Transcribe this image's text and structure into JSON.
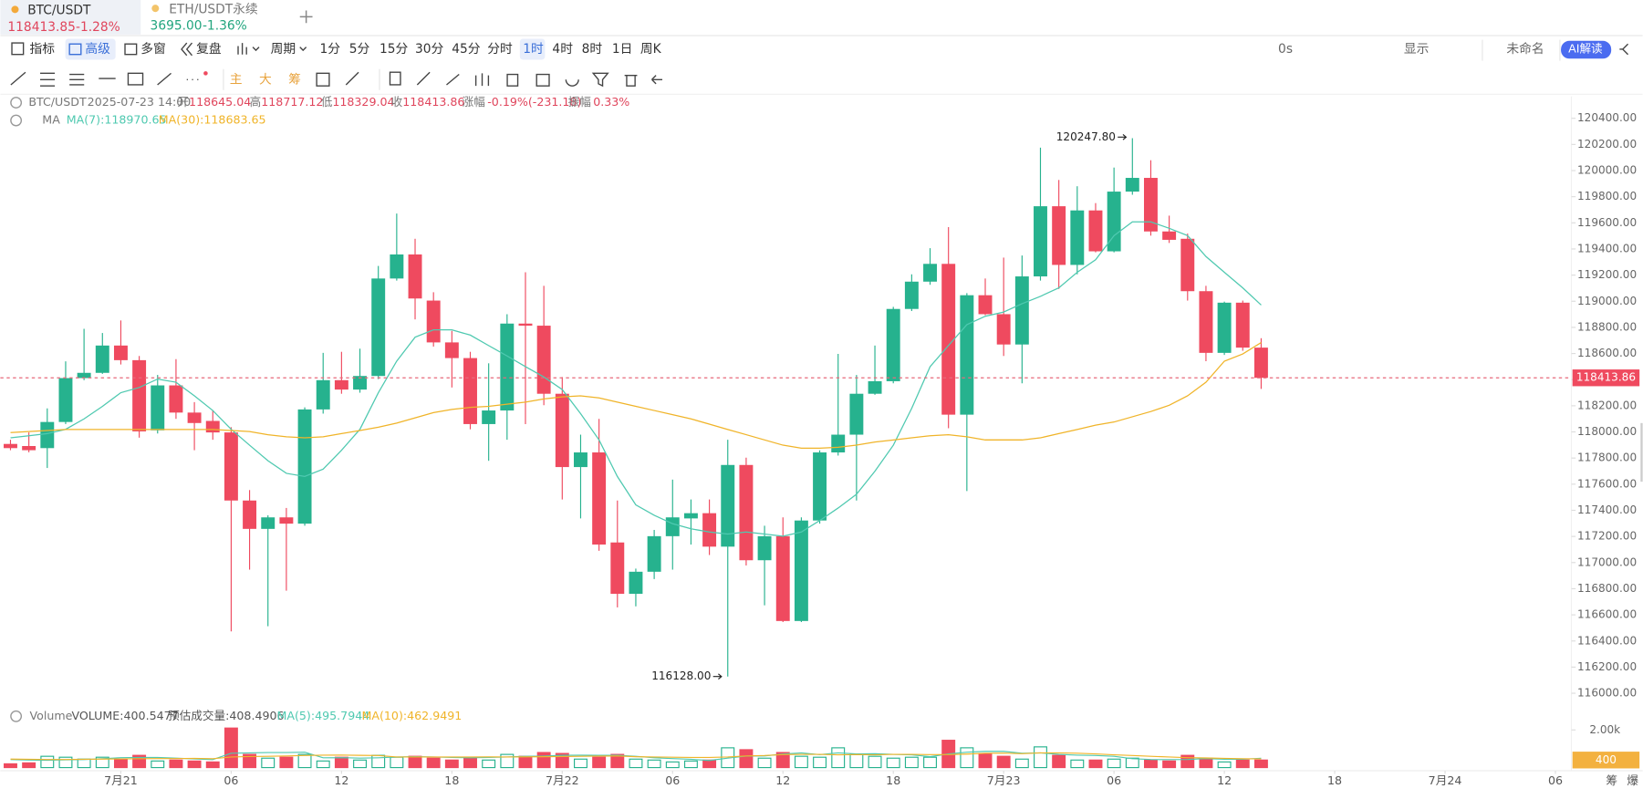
{
  "tabs": [
    {
      "symbol": "BTC/USDT",
      "price": "118413.85",
      "change": "-1.28%"
    },
    {
      "symbol": "ETH/USDT永续",
      "price": "3695.00",
      "change": "-1.36%"
    }
  ],
  "toolbar": {
    "left": [
      "指标",
      "高级",
      "多窗",
      "复盘",
      "周期"
    ],
    "intervals": [
      "1分",
      "5分",
      "15分",
      "30分",
      "45分",
      "分时",
      "1时",
      "4时",
      "8时",
      "1日",
      "周K"
    ],
    "right": [
      "0s",
      "显示",
      "未命名",
      "AI解读"
    ],
    "drawing": [
      "主",
      "大",
      "筹"
    ],
    "footer": [
      "筹",
      "爆"
    ]
  },
  "chart_data": [
    {
      "type": "candlestick",
      "title": "BTC/USDT",
      "subtitle": "2025-07-23 14:00",
      "info": [
        [
          "开",
          "118645.04"
        ],
        [
          "高",
          "118717.12"
        ],
        [
          "低",
          "118329.04"
        ],
        [
          "收",
          "118413.86"
        ],
        [
          "涨幅",
          "-0.19%(-231.18)"
        ],
        [
          "振幅",
          "0.33%"
        ]
      ],
      "indicator": "MA",
      "x": [
        -6,
        -5,
        -4,
        -3,
        -2,
        -1,
        0,
        1,
        2,
        3,
        4,
        5,
        6,
        7,
        8,
        9,
        10,
        11,
        12,
        13,
        14,
        15,
        16,
        17,
        18,
        19,
        20,
        21,
        22,
        23,
        24,
        25,
        26,
        27,
        28,
        29,
        30,
        31,
        32,
        33,
        34,
        35,
        36,
        37,
        38,
        39,
        40,
        41,
        42,
        43,
        44,
        45,
        46,
        47,
        48,
        49,
        50,
        51,
        52,
        53,
        54,
        55,
        56,
        57,
        58,
        59,
        60,
        61,
        62
      ],
      "open": [
        117908,
        117892,
        117876,
        118076,
        118412,
        118452,
        118661,
        118549,
        118012,
        118356,
        118148,
        118084,
        117996,
        117475,
        117258,
        117346,
        117298,
        118172,
        118396,
        118324,
        118428,
        119174,
        119358,
        119005,
        118685,
        118565,
        118060,
        118164,
        118829,
        118813,
        118292,
        117731,
        117843,
        117154,
        116761,
        116930,
        117202,
        117338,
        117378,
        117122,
        117747,
        117018,
        117202,
        116553,
        117322,
        117843,
        117979,
        118292,
        118388,
        118941,
        119150,
        119286,
        118132,
        119046,
        118901,
        118669,
        119190,
        119727,
        119278,
        119695,
        119382,
        119839,
        119944,
        119534,
        119478,
        119077,
        118605,
        118989,
        118645.04
      ],
      "high": [
        117940,
        117996,
        118180,
        118540,
        118789,
        118757,
        118853,
        118581,
        118436,
        118557,
        118228,
        118164,
        118036,
        117555,
        117362,
        117418,
        118188,
        118605,
        118613,
        118637,
        119270,
        119671,
        119478,
        119069,
        118773,
        118613,
        118525,
        118901,
        119222,
        119118,
        118420,
        117979,
        118100,
        117475,
        116954,
        117250,
        117635,
        117483,
        117483,
        117940,
        117803,
        117282,
        117346,
        117346,
        117859,
        118597,
        118436,
        118661,
        118957,
        119206,
        119406,
        119567,
        119062,
        119174,
        119334,
        119350,
        120175,
        119928,
        119880,
        119751,
        120023,
        120247.8,
        120079,
        119655,
        119518,
        119118,
        118997,
        119005,
        118717.12
      ],
      "low": [
        117860,
        117844,
        117724,
        118060,
        118396,
        118444,
        118516,
        117956,
        117988,
        118100,
        117860,
        117940,
        116473,
        116946,
        116513,
        116785,
        117282,
        118140,
        118292,
        118300,
        118404,
        119158,
        118861,
        118653,
        118340,
        118020,
        117779,
        117940,
        118060,
        118204,
        117483,
        117338,
        117090,
        116657,
        116665,
        116874,
        116946,
        117138,
        117058,
        116128,
        116978,
        116673,
        116545,
        116545,
        117298,
        117819,
        117475,
        118284,
        118372,
        118925,
        119126,
        118028,
        117547,
        118893,
        118581,
        118372,
        119158,
        119094,
        119206,
        119374,
        119374,
        119815,
        119502,
        119446,
        119005,
        118541,
        118589,
        118621,
        118329.04
      ],
      "close": [
        117876,
        117860,
        118076,
        118412,
        118452,
        118661,
        118549,
        118004,
        118356,
        118148,
        118068,
        117996,
        117475,
        117258,
        117346,
        117298,
        118172,
        118396,
        118324,
        118428,
        119174,
        119358,
        119021,
        118685,
        118565,
        118060,
        118164,
        118829,
        118813,
        118292,
        117731,
        117843,
        117138,
        116761,
        116930,
        117202,
        117346,
        117378,
        117122,
        117747,
        117018,
        117202,
        116553,
        117322,
        117843,
        117979,
        118292,
        118388,
        118941,
        119150,
        119286,
        118132,
        119046,
        118901,
        118669,
        119190,
        119727,
        119278,
        119695,
        119382,
        119839,
        119944,
        119534,
        119470,
        119077,
        118605,
        118989,
        118645,
        118413.86
      ],
      "colors": {
        "up": "#26b28e",
        "down": "#ef4a5f"
      },
      "series": [
        {
          "name": "MA(7):118970.65",
          "color": "#4fc9b0",
          "values": [
            117955,
            117971,
            117987,
            118020,
            118100,
            118196,
            118300,
            118340,
            118404,
            118380,
            118276,
            118164,
            118020,
            117899,
            117779,
            117683,
            117659,
            117715,
            117859,
            118020,
            118300,
            118541,
            118725,
            118781,
            118781,
            118741,
            118661,
            118581,
            118500,
            118420,
            118324,
            118140,
            117939,
            117659,
            117442,
            117362,
            117298,
            117258,
            117234,
            117218,
            117234,
            117218,
            117202,
            117234,
            117322,
            117418,
            117523,
            117699,
            117899,
            118180,
            118500,
            118661,
            118821,
            118885,
            118917,
            118981,
            119037,
            119102,
            119222,
            119318,
            119502,
            119607,
            119607,
            119558,
            119502,
            119342,
            119222,
            119102,
            118970.65
          ]
        },
        {
          "name": "MA(30):118683.65",
          "color": "#f0b429",
          "values": [
            117995,
            118003,
            118011,
            118019,
            118019,
            118019,
            118019,
            118019,
            118019,
            118019,
            118019,
            118019,
            118011,
            118003,
            117979,
            117963,
            117955,
            117963,
            117987,
            118011,
            118036,
            118068,
            118108,
            118148,
            118172,
            118188,
            118196,
            118212,
            118228,
            118252,
            118268,
            118276,
            118260,
            118228,
            118196,
            118164,
            118132,
            118100,
            118060,
            118019,
            117979,
            117939,
            117899,
            117875,
            117875,
            117883,
            117899,
            117923,
            117939,
            117955,
            117971,
            117979,
            117963,
            117939,
            117939,
            117939,
            117955,
            117987,
            118019,
            118052,
            118076,
            118116,
            118156,
            118204,
            118276,
            118380,
            118541,
            118597,
            118683.65
          ]
        }
      ],
      "high_label": "120247.80",
      "low_label": "116128.00",
      "last_label": "118413.86",
      "xlim": [
        -6.55,
        78.87
      ],
      "xticks": [
        {
          "value": 0,
          "label": "7月21"
        },
        {
          "value": 6,
          "label": "06"
        },
        {
          "value": 12,
          "label": "12"
        },
        {
          "value": 18,
          "label": "18"
        },
        {
          "value": 24,
          "label": "7月22"
        },
        {
          "value": 30,
          "label": "06"
        },
        {
          "value": 36,
          "label": "12"
        },
        {
          "value": 42,
          "label": "18"
        },
        {
          "value": 48,
          "label": "7月23"
        },
        {
          "value": 54,
          "label": "06"
        },
        {
          "value": 60,
          "label": "12"
        },
        {
          "value": 66,
          "label": "18"
        },
        {
          "value": 72,
          "label": "7月24"
        },
        {
          "value": 78,
          "label": "06"
        }
      ],
      "ylim": [
        115896,
        120568
      ],
      "yticks": [
        {
          "value": 116000,
          "label": "116000.00"
        },
        {
          "value": 116200,
          "label": "116200.00"
        },
        {
          "value": 116400,
          "label": "116400.00"
        },
        {
          "value": 116600,
          "label": "116600.00"
        },
        {
          "value": 116800,
          "label": "116800.00"
        },
        {
          "value": 117000,
          "label": "117000.00"
        },
        {
          "value": 117200,
          "label": "117200.00"
        },
        {
          "value": 117400,
          "label": "117400.00"
        },
        {
          "value": 117600,
          "label": "117600.00"
        },
        {
          "value": 117800,
          "label": "117800.00"
        },
        {
          "value": 118000,
          "label": "118000.00"
        },
        {
          "value": 118200,
          "label": "118200.00"
        },
        {
          "value": 118400,
          "label": "118400.00"
        },
        {
          "value": 118600,
          "label": "118600.00"
        },
        {
          "value": 118800,
          "label": "118800.00"
        },
        {
          "value": 119000,
          "label": "119000.00"
        },
        {
          "value": 119200,
          "label": "119200.00"
        },
        {
          "value": 119400,
          "label": "119400.00"
        },
        {
          "value": 119600,
          "label": "119600.00"
        },
        {
          "value": 119800,
          "label": "119800.00"
        },
        {
          "value": 120000,
          "label": "120000.00"
        },
        {
          "value": 120200,
          "label": "120200.00"
        },
        {
          "value": 120400,
          "label": "120400.00"
        }
      ]
    },
    {
      "type": "bar",
      "title": "Volume",
      "legend": [
        "VOLUME:400.5477",
        "预估成交量:408.4906"
      ],
      "values": [
        200,
        250,
        600,
        550,
        450,
        550,
        450,
        650,
        350,
        400,
        350,
        300,
        2100,
        700,
        500,
        550,
        700,
        350,
        550,
        400,
        650,
        550,
        600,
        500,
        400,
        550,
        400,
        700,
        600,
        800,
        750,
        450,
        550,
        700,
        450,
        400,
        300,
        350,
        400,
        1050,
        950,
        500,
        800,
        600,
        550,
        1050,
        700,
        600,
        500,
        550,
        550,
        1450,
        1050,
        750,
        600,
        450,
        1100,
        650,
        400,
        400,
        450,
        500,
        400,
        350,
        650,
        500,
        300,
        400,
        400.5477
      ],
      "series": [
        {
          "name": "MA(5):495.7944",
          "color": "#4fc9b0",
          "values": [
            420,
            400,
            390,
            410,
            420,
            470,
            530,
            540,
            540,
            500,
            460,
            420,
            760,
            780,
            800,
            800,
            820,
            520,
            530,
            500,
            520,
            560,
            580,
            560,
            540,
            520,
            540,
            560,
            600,
            610,
            650,
            660,
            650,
            650,
            600,
            520,
            480,
            440,
            380,
            500,
            610,
            620,
            720,
            780,
            690,
            780,
            730,
            740,
            700,
            680,
            580,
            730,
            820,
            860,
            860,
            760,
            780,
            700,
            660,
            640,
            600,
            470,
            430,
            420,
            430,
            480,
            440,
            440,
            495.7944
          ]
        },
        {
          "name": "MA(10):462.9491",
          "color": "#f0b429",
          "values": [
            450,
            440,
            430,
            430,
            440,
            450,
            460,
            470,
            480,
            480,
            490,
            470,
            560,
            590,
            600,
            620,
            640,
            660,
            670,
            650,
            640,
            560,
            560,
            560,
            560,
            560,
            570,
            560,
            570,
            580,
            590,
            600,
            610,
            620,
            580,
            560,
            550,
            540,
            540,
            560,
            620,
            640,
            690,
            700,
            700,
            680,
            690,
            680,
            700,
            700,
            690,
            690,
            720,
            760,
            770,
            740,
            780,
            780,
            760,
            730,
            680,
            640,
            600,
            560,
            530,
            510,
            490,
            475,
            462.9491
          ]
        }
      ],
      "last_label": "400",
      "ylim": [
        0,
        2280
      ],
      "yticks": [
        {
          "value": 2000,
          "label": "2.00k"
        }
      ]
    }
  ]
}
